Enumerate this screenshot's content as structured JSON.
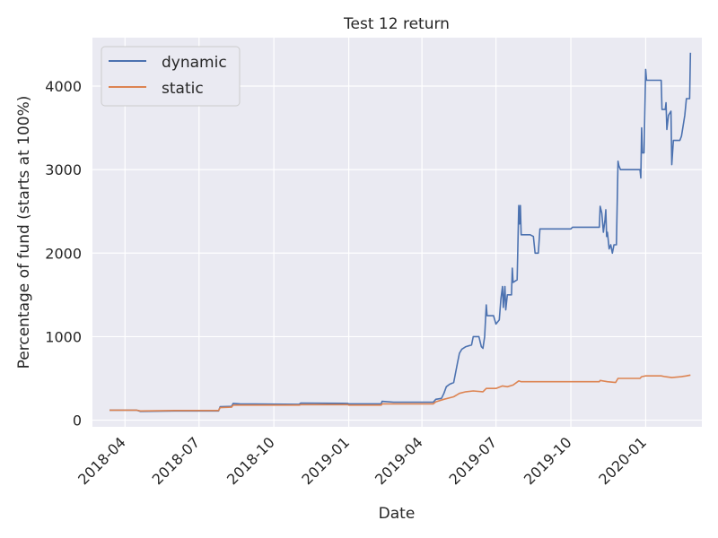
{
  "chart_data": {
    "type": "line",
    "title": "Test 12 return",
    "xlabel": "Date",
    "ylabel": "Percentage of fund (starts at 100%)",
    "xlim": [
      "2018-02-20",
      "2020-03-10"
    ],
    "ylim": [
      -80,
      4580
    ],
    "x_ticks": [
      {
        "date": "2018-04-01",
        "label": "2018-04"
      },
      {
        "date": "2018-07-01",
        "label": "2018-07"
      },
      {
        "date": "2018-10-01",
        "label": "2018-10"
      },
      {
        "date": "2019-01-01",
        "label": "2019-01"
      },
      {
        "date": "2019-04-01",
        "label": "2019-04"
      },
      {
        "date": "2019-07-01",
        "label": "2019-07"
      },
      {
        "date": "2019-10-01",
        "label": "2019-10"
      },
      {
        "date": "2020-01-01",
        "label": "2020-01"
      }
    ],
    "y_ticks": [
      0,
      1000,
      2000,
      3000,
      4000
    ],
    "grid": true,
    "legend_position": "top-left",
    "colors": {
      "background": "#eaeaf2",
      "grid": "#ffffff",
      "dynamic": "#4c72b0",
      "static": "#dd8452"
    },
    "series": [
      {
        "name": "dynamic",
        "color": "#4c72b0",
        "points": [
          [
            "2018-03-13",
            120
          ],
          [
            "2018-04-15",
            120
          ],
          [
            "2018-04-20",
            105
          ],
          [
            "2018-06-01",
            110
          ],
          [
            "2018-07-25",
            110
          ],
          [
            "2018-07-27",
            160
          ],
          [
            "2018-08-10",
            165
          ],
          [
            "2018-08-12",
            200
          ],
          [
            "2018-08-20",
            195
          ],
          [
            "2018-11-01",
            190
          ],
          [
            "2018-11-03",
            205
          ],
          [
            "2018-12-31",
            200
          ],
          [
            "2019-01-01",
            195
          ],
          [
            "2019-02-10",
            195
          ],
          [
            "2019-02-11",
            225
          ],
          [
            "2019-02-25",
            215
          ],
          [
            "2019-04-15",
            215
          ],
          [
            "2019-04-18",
            250
          ],
          [
            "2019-04-25",
            260
          ],
          [
            "2019-04-28",
            320
          ],
          [
            "2019-05-01",
            400
          ],
          [
            "2019-05-05",
            430
          ],
          [
            "2019-05-10",
            450
          ],
          [
            "2019-05-15",
            700
          ],
          [
            "2019-05-17",
            800
          ],
          [
            "2019-05-20",
            850
          ],
          [
            "2019-05-25",
            880
          ],
          [
            "2019-06-01",
            900
          ],
          [
            "2019-06-03",
            1000
          ],
          [
            "2019-06-10",
            1000
          ],
          [
            "2019-06-13",
            880
          ],
          [
            "2019-06-15",
            860
          ],
          [
            "2019-06-17",
            1000
          ],
          [
            "2019-06-19",
            1380
          ],
          [
            "2019-06-20",
            1250
          ],
          [
            "2019-06-28",
            1250
          ],
          [
            "2019-07-01",
            1150
          ],
          [
            "2019-07-05",
            1200
          ],
          [
            "2019-07-07",
            1450
          ],
          [
            "2019-07-09",
            1600
          ],
          [
            "2019-07-10",
            1350
          ],
          [
            "2019-07-12",
            1600
          ],
          [
            "2019-07-13",
            1320
          ],
          [
            "2019-07-15",
            1500
          ],
          [
            "2019-07-20",
            1500
          ],
          [
            "2019-07-21",
            1820
          ],
          [
            "2019-07-22",
            1650
          ],
          [
            "2019-07-27",
            1680
          ],
          [
            "2019-07-29",
            2570
          ],
          [
            "2019-07-30",
            2350
          ],
          [
            "2019-07-31",
            2570
          ],
          [
            "2019-08-01",
            2220
          ],
          [
            "2019-08-12",
            2220
          ],
          [
            "2019-08-16",
            2200
          ],
          [
            "2019-08-18",
            2000
          ],
          [
            "2019-08-22",
            2000
          ],
          [
            "2019-08-24",
            2290
          ],
          [
            "2019-10-01",
            2290
          ],
          [
            "2019-10-03",
            2310
          ],
          [
            "2019-11-05",
            2310
          ],
          [
            "2019-11-06",
            2560
          ],
          [
            "2019-11-08",
            2480
          ],
          [
            "2019-11-10",
            2250
          ],
          [
            "2019-11-12",
            2400
          ],
          [
            "2019-11-13",
            2520
          ],
          [
            "2019-11-14",
            2200
          ],
          [
            "2019-11-15",
            2250
          ],
          [
            "2019-11-17",
            2050
          ],
          [
            "2019-11-19",
            2100
          ],
          [
            "2019-11-21",
            2000
          ],
          [
            "2019-11-23",
            2100
          ],
          [
            "2019-11-26",
            2100
          ],
          [
            "2019-11-28",
            3100
          ],
          [
            "2019-11-29",
            3050
          ],
          [
            "2019-12-01",
            3000
          ],
          [
            "2019-12-25",
            3000
          ],
          [
            "2019-12-26",
            2900
          ],
          [
            "2019-12-27",
            3500
          ],
          [
            "2019-12-28",
            3200
          ],
          [
            "2019-12-30",
            3200
          ],
          [
            "2020-01-01",
            4200
          ],
          [
            "2020-01-02",
            4070
          ],
          [
            "2020-01-20",
            4070
          ],
          [
            "2020-01-21",
            3720
          ],
          [
            "2020-01-25",
            3720
          ],
          [
            "2020-01-26",
            3800
          ],
          [
            "2020-01-27",
            3480
          ],
          [
            "2020-01-29",
            3650
          ],
          [
            "2020-02-01",
            3700
          ],
          [
            "2020-02-02",
            3060
          ],
          [
            "2020-02-04",
            3350
          ],
          [
            "2020-02-12",
            3350
          ],
          [
            "2020-02-14",
            3400
          ],
          [
            "2020-02-18",
            3650
          ],
          [
            "2020-02-20",
            3850
          ],
          [
            "2020-02-24",
            3850
          ],
          [
            "2020-02-25",
            4400
          ]
        ]
      },
      {
        "name": "static",
        "color": "#dd8452",
        "points": [
          [
            "2018-03-13",
            120
          ],
          [
            "2018-04-15",
            120
          ],
          [
            "2018-04-20",
            110
          ],
          [
            "2018-06-01",
            115
          ],
          [
            "2018-07-25",
            115
          ],
          [
            "2018-07-27",
            150
          ],
          [
            "2018-08-10",
            155
          ],
          [
            "2018-08-12",
            180
          ],
          [
            "2018-11-01",
            180
          ],
          [
            "2018-11-03",
            185
          ],
          [
            "2018-12-31",
            185
          ],
          [
            "2019-01-01",
            180
          ],
          [
            "2019-02-10",
            180
          ],
          [
            "2019-02-11",
            195
          ],
          [
            "2019-04-15",
            195
          ],
          [
            "2019-04-18",
            220
          ],
          [
            "2019-04-28",
            250
          ],
          [
            "2019-05-10",
            280
          ],
          [
            "2019-05-17",
            320
          ],
          [
            "2019-05-25",
            340
          ],
          [
            "2019-06-03",
            350
          ],
          [
            "2019-06-15",
            340
          ],
          [
            "2019-06-19",
            380
          ],
          [
            "2019-07-01",
            380
          ],
          [
            "2019-07-09",
            410
          ],
          [
            "2019-07-15",
            400
          ],
          [
            "2019-07-22",
            420
          ],
          [
            "2019-07-29",
            470
          ],
          [
            "2019-08-01",
            460
          ],
          [
            "2019-08-24",
            460
          ],
          [
            "2019-10-01",
            460
          ],
          [
            "2019-11-05",
            460
          ],
          [
            "2019-11-06",
            475
          ],
          [
            "2019-11-15",
            460
          ],
          [
            "2019-11-25",
            450
          ],
          [
            "2019-11-28",
            500
          ],
          [
            "2019-12-25",
            500
          ],
          [
            "2019-12-27",
            520
          ],
          [
            "2020-01-01",
            530
          ],
          [
            "2020-01-20",
            530
          ],
          [
            "2020-01-25",
            520
          ],
          [
            "2020-02-02",
            510
          ],
          [
            "2020-02-14",
            520
          ],
          [
            "2020-02-20",
            530
          ],
          [
            "2020-02-25",
            540
          ]
        ]
      }
    ]
  }
}
